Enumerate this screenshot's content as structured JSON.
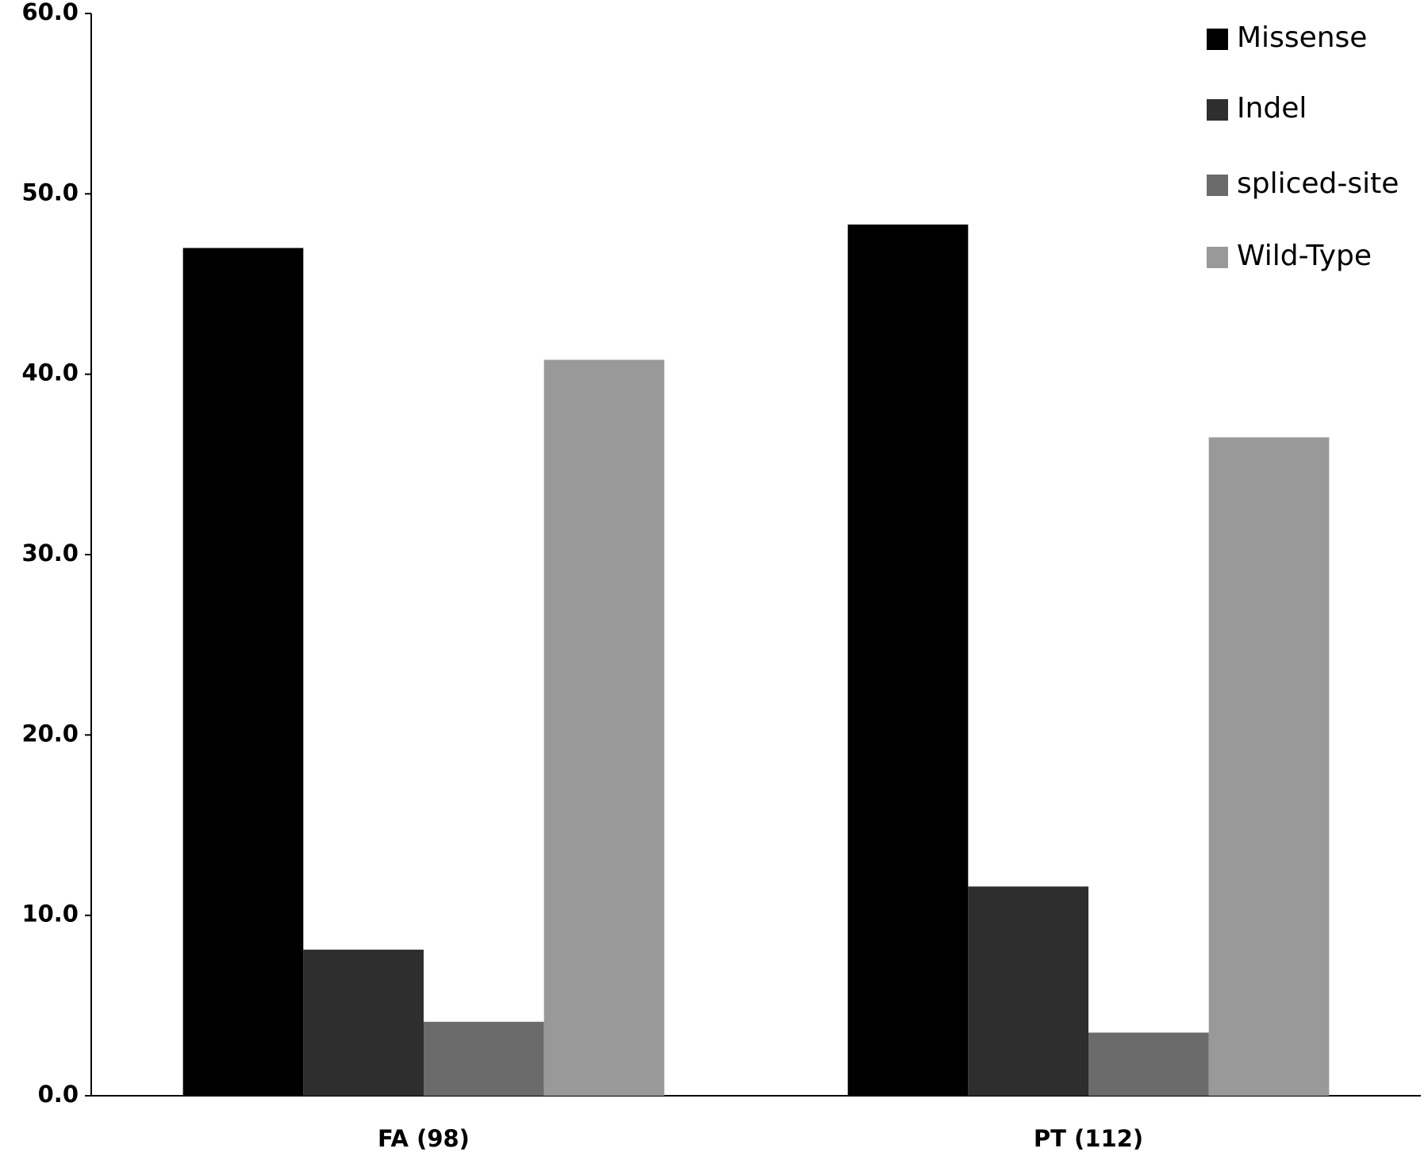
{
  "chart_data": {
    "type": "bar",
    "categories": [
      "FA (98)",
      "PT (112)"
    ],
    "series": [
      {
        "name": "Missense",
        "color": "#000000",
        "values": [
          47.0,
          48.3
        ]
      },
      {
        "name": "Indel",
        "color": "#2e2e2e",
        "values": [
          8.1,
          11.6
        ]
      },
      {
        "name": "spliced-site",
        "color": "#6b6b6b",
        "values": [
          4.1,
          3.5
        ]
      },
      {
        "name": "Wild-Type",
        "color": "#999999",
        "values": [
          40.8,
          36.5
        ]
      }
    ],
    "ylim": [
      0,
      60
    ],
    "yticks": [
      {
        "value": 0,
        "label": "0.0"
      },
      {
        "value": 10,
        "label": "10.0"
      },
      {
        "value": 20,
        "label": "20.0"
      },
      {
        "value": 30,
        "label": "30.0"
      },
      {
        "value": 40,
        "label": "40.0"
      },
      {
        "value": 50,
        "label": "50.0"
      },
      {
        "value": 60,
        "label": "60.0"
      }
    ],
    "grid": false,
    "legend": "top-right"
  }
}
